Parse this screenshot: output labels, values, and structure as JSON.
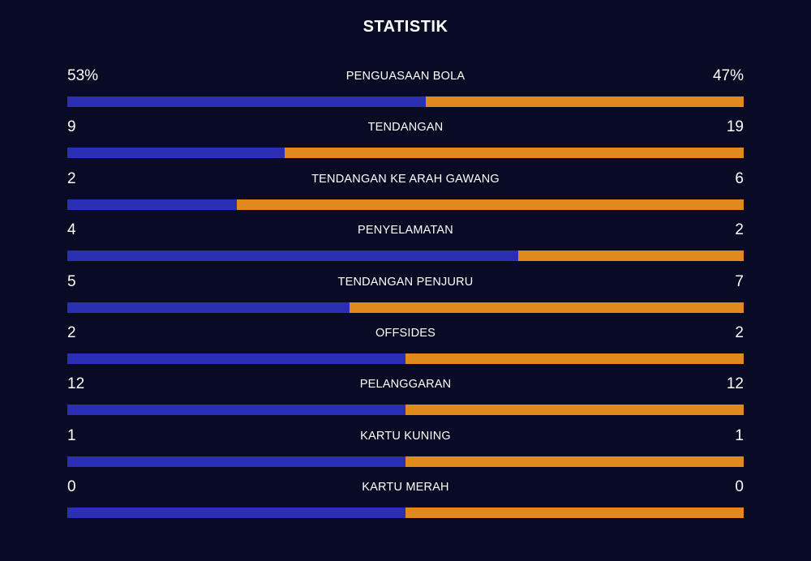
{
  "title": "STATISTIK",
  "colors": {
    "home": "#2a2fb4",
    "away": "#e0891c",
    "background": "#090a24"
  },
  "stats": [
    {
      "label": "PENGUASAAN BOLA",
      "home": "53%",
      "away": "47%",
      "home_value": 53,
      "away_value": 47
    },
    {
      "label": "TENDANGAN",
      "home": "9",
      "away": "19",
      "home_value": 9,
      "away_value": 19
    },
    {
      "label": "TENDANGAN KE ARAH GAWANG",
      "home": "2",
      "away": "6",
      "home_value": 2,
      "away_value": 6
    },
    {
      "label": "PENYELAMATAN",
      "home": "4",
      "away": "2",
      "home_value": 4,
      "away_value": 2
    },
    {
      "label": "TENDANGAN PENJURU",
      "home": "5",
      "away": "7",
      "home_value": 5,
      "away_value": 7
    },
    {
      "label": "OFFSIDES",
      "home": "2",
      "away": "2",
      "home_value": 2,
      "away_value": 2
    },
    {
      "label": "PELANGGARAN",
      "home": "12",
      "away": "12",
      "home_value": 12,
      "away_value": 12
    },
    {
      "label": "KARTU KUNING",
      "home": "1",
      "away": "1",
      "home_value": 1,
      "away_value": 1
    },
    {
      "label": "KARTU MERAH",
      "home": "0",
      "away": "0",
      "home_value": 0,
      "away_value": 0
    }
  ]
}
